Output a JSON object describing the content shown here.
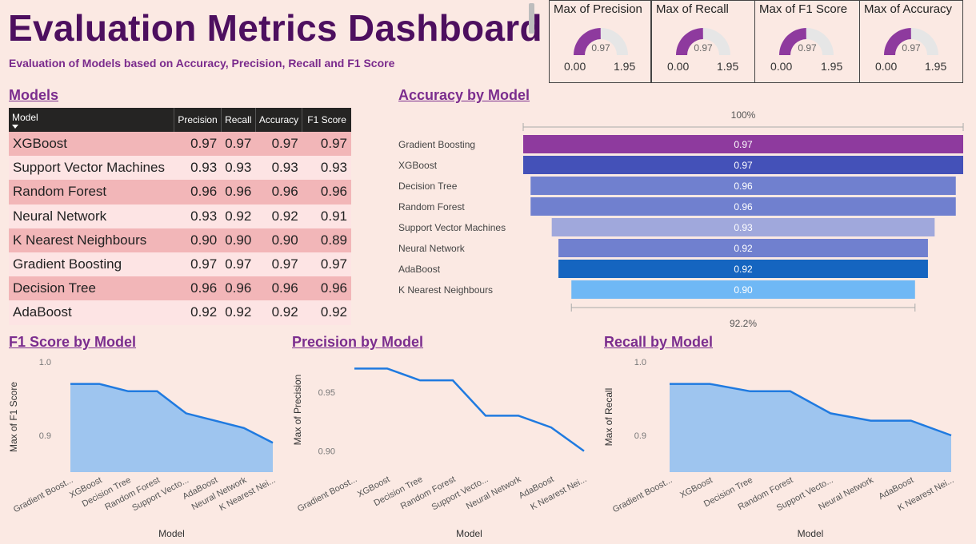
{
  "header": {
    "title": "Evaluation Metrics Dashboard",
    "subtitle": "Evaluation of Models based on Accuracy, Precision, Recall and F1 Score"
  },
  "colors": {
    "title": "#4d0f5f",
    "accent": "#7b2d8e",
    "gauge_fill": "#8e3a9e",
    "gauge_track": "#e6e6e6",
    "area_fill": "#9ec5ef",
    "line": "#1f7ae0"
  },
  "gauges": [
    {
      "title": "Max of Precision",
      "value": 0.97,
      "value_label": "0.97",
      "min": "0.00",
      "max": "1.95"
    },
    {
      "title": "Max of Recall",
      "value": 0.97,
      "value_label": "0.97",
      "min": "0.00",
      "max": "1.95"
    },
    {
      "title": "Max of F1 Score",
      "value": 0.97,
      "value_label": "0.97",
      "min": "0.00",
      "max": "1.95"
    },
    {
      "title": "Max of Accuracy",
      "value": 0.97,
      "value_label": "0.97",
      "min": "0.00",
      "max": "1.95"
    }
  ],
  "models_table": {
    "title": "Models",
    "columns": [
      "Model",
      "Precision",
      "Recall",
      "Accuracy",
      "F1 Score"
    ],
    "rows": [
      [
        "XGBoost",
        "0.97",
        "0.97",
        "0.97",
        "0.97"
      ],
      [
        "Support Vector Machines",
        "0.93",
        "0.93",
        "0.93",
        "0.93"
      ],
      [
        "Random Forest",
        "0.96",
        "0.96",
        "0.96",
        "0.96"
      ],
      [
        "Neural Network",
        "0.93",
        "0.92",
        "0.92",
        "0.91"
      ],
      [
        "K Nearest Neighbours",
        "0.90",
        "0.90",
        "0.90",
        "0.89"
      ],
      [
        "Gradient Boosting",
        "0.97",
        "0.97",
        "0.97",
        "0.97"
      ],
      [
        "Decision Tree",
        "0.96",
        "0.96",
        "0.96",
        "0.96"
      ],
      [
        "AdaBoost",
        "0.92",
        "0.92",
        "0.92",
        "0.92"
      ]
    ]
  },
  "chart_data": [
    {
      "type": "bar",
      "subtype": "funnel",
      "title": "Accuracy by Model",
      "top_label": "100%",
      "bottom_label": "92.2%",
      "categories": [
        "Gradient Boosting",
        "XGBoost",
        "Decision Tree",
        "Random Forest",
        "Support Vector Machines",
        "Neural Network",
        "AdaBoost",
        "K Nearest Neighbours"
      ],
      "values": [
        0.97,
        0.97,
        0.96,
        0.96,
        0.93,
        0.92,
        0.92,
        0.9
      ],
      "value_labels": [
        "0.97",
        "0.97",
        "0.96",
        "0.96",
        "0.93",
        "0.92",
        "0.92",
        "0.90"
      ],
      "bar_colors": [
        "#8e3a9e",
        "#4451b8",
        "#7080cf",
        "#7080cf",
        "#a0a8dc",
        "#7080cf",
        "#1565c0",
        "#6fb8f5"
      ]
    },
    {
      "type": "area",
      "title": "F1 Score by Model",
      "xlabel": "Model",
      "ylabel": "Max of F1 Score",
      "categories": [
        "Gradient Boost...",
        "XGBoost",
        "Decision Tree",
        "Random Forest",
        "Support Vecto...",
        "AdaBoost",
        "Neural Network",
        "K Nearest Nei..."
      ],
      "values": [
        0.97,
        0.97,
        0.96,
        0.96,
        0.93,
        0.92,
        0.91,
        0.89
      ],
      "ylim": [
        0.85,
        1.0
      ],
      "yticks": [
        0.9,
        1.0
      ],
      "ytick_labels": [
        "0.9",
        "1.0"
      ]
    },
    {
      "type": "line",
      "title": "Precision by Model",
      "xlabel": "Model",
      "ylabel": "Max of Precision",
      "categories": [
        "Gradient Boost...",
        "XGBoost",
        "Decision Tree",
        "Random Forest",
        "Support Vecto...",
        "Neural Network",
        "AdaBoost",
        "K Nearest Nei..."
      ],
      "values": [
        0.97,
        0.97,
        0.96,
        0.96,
        0.93,
        0.93,
        0.92,
        0.9
      ],
      "ylim": [
        0.895,
        0.975
      ],
      "yticks": [
        0.9,
        0.95
      ],
      "ytick_labels": [
        "0.90",
        "0.95"
      ]
    },
    {
      "type": "area",
      "title": "Recall by Model",
      "xlabel": "Model",
      "ylabel": "Max of Recall",
      "categories": [
        "Gradient Boost...",
        "XGBoost",
        "Decision Tree",
        "Random Forest",
        "Support Vecto...",
        "Neural Network",
        "AdaBoost",
        "K Nearest Nei..."
      ],
      "values": [
        0.97,
        0.97,
        0.96,
        0.96,
        0.93,
        0.92,
        0.92,
        0.9
      ],
      "ylim": [
        0.85,
        1.0
      ],
      "yticks": [
        0.9,
        1.0
      ],
      "ytick_labels": [
        "0.9",
        "1.0"
      ]
    }
  ]
}
